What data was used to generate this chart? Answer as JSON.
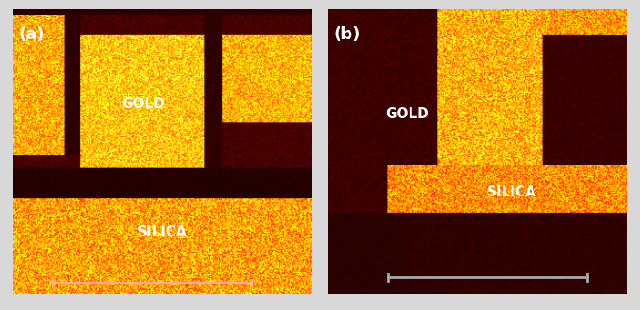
{
  "fig_width": 7.03,
  "fig_height": 3.41,
  "dpi": 100,
  "bg_color": "#d8d8d8",
  "panel_a_label": "(a)",
  "panel_b_label": "(b)",
  "gold_label": "GOLD",
  "silica_label": "SILICA",
  "label_color": "white",
  "label_fontsize": 11,
  "panel_label_fontsize": 13,
  "scalebar_color_a": "#ffaaaa",
  "scalebar_color_b": "#aaaaaa",
  "seed_a": 42,
  "seed_b": 77
}
